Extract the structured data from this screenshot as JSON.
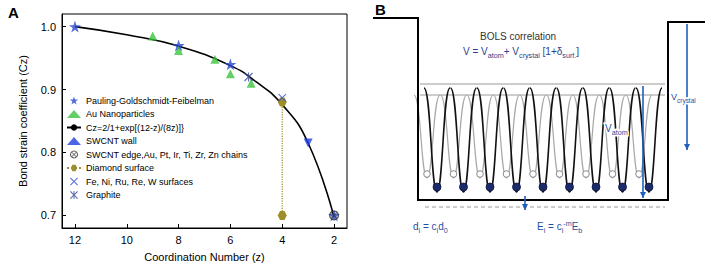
{
  "chart_data": {
    "type": "scatter",
    "title": "A",
    "x_label": "Coordination Number (z)",
    "y_label": "Bond strain coefficient (Cz)",
    "xlim": [
      12.5,
      1.5
    ],
    "xticks": [
      12,
      10,
      8,
      6,
      4,
      2
    ],
    "ylim": [
      0.68,
      1.02
    ],
    "yticks": [
      0.7,
      0.8,
      0.9,
      {
        "value": 1,
        "label": "1.0"
      }
    ],
    "grid": false,
    "legend": "left",
    "series": [
      {
        "name": "Pauling-Goldschmidt-Feibelman",
        "type": "scatter",
        "marker": "star",
        "color": "#2846d0",
        "x": [
          12,
          8,
          6,
          2
        ],
        "values": [
          1.0,
          0.97,
          0.94,
          0.7
        ]
      },
      {
        "name": "Au Nanoparticles",
        "type": "scatter",
        "marker": "triangle",
        "color": "#3cc43c",
        "x": [
          9,
          8,
          6.6,
          6,
          5.2
        ],
        "values": [
          0.985,
          0.962,
          0.948,
          0.925,
          0.91
        ]
      },
      {
        "name": "Cz=2/1+exp[(12-z)/(8z)]}",
        "type": "line",
        "marker": "none",
        "line_style": "solid",
        "color": "#000000",
        "x": [
          12,
          10,
          8,
          6,
          5,
          4,
          3,
          2
        ],
        "values": [
          1.0,
          0.987,
          0.969,
          0.938,
          0.912,
          0.876,
          0.815,
          0.697
        ]
      },
      {
        "name": "SWCNT wall",
        "type": "scatter",
        "marker": "triangle_down",
        "color": "#1f3fe0",
        "x": [
          3
        ],
        "values": [
          0.815
        ]
      },
      {
        "name": "SWCNT edge,Au, Pt, Ir, Ti, Zr, Zn chains",
        "type": "scatter",
        "marker": "circle_cross",
        "color": "#333333",
        "x": [
          2
        ],
        "values": [
          0.7
        ]
      },
      {
        "name": "Diamond surface",
        "type": "line",
        "marker": "hexagon",
        "line_style": "dotted",
        "color": "#9c8f2a",
        "x": [
          4,
          4
        ],
        "values": [
          0.88,
          0.7
        ]
      },
      {
        "name": "Fe, Ni, Ru, Re, W surfaces",
        "type": "scatter",
        "marker": "x",
        "color": "#3a50d8",
        "x": [
          4
        ],
        "values": [
          0.887
        ]
      },
      {
        "name": "Graphite",
        "type": "scatter",
        "marker": "asterisk",
        "color": "#3a4a9a",
        "x": [
          5.3
        ],
        "values": [
          0.92
        ]
      }
    ]
  },
  "diagram": {
    "label": "B",
    "title": "BOLS correlation",
    "formula": [
      {
        "text": "V = V"
      },
      {
        "text": "atom",
        "sub": true
      },
      {
        "text": "+ V"
      },
      {
        "text": "crystal",
        "sub": true
      },
      {
        "text": " [1+δ"
      },
      {
        "text": "surf.",
        "sub": true
      },
      {
        "text": "]"
      }
    ],
    "crystal_potential": [
      {
        "text": "V"
      },
      {
        "text": "crystal",
        "sub": true
      }
    ],
    "atom_potential": [
      {
        "text": "V"
      },
      {
        "text": "atom",
        "sub": true
      }
    ],
    "bond_length": [
      {
        "text": "d"
      },
      {
        "text": "i",
        "sub": true
      },
      {
        "text": " = c"
      },
      {
        "text": "i",
        "sub": true
      },
      {
        "text": "d"
      },
      {
        "text": "0",
        "sub": true
      }
    ],
    "bond_energy": [
      {
        "text": "E"
      },
      {
        "text": "i",
        "sub": true
      },
      {
        "text": " = c"
      },
      {
        "text": "i",
        "sub": true
      },
      {
        "text": "-m",
        "sup": true
      },
      {
        "text": "E"
      },
      {
        "text": "b",
        "sub": true
      }
    ]
  }
}
